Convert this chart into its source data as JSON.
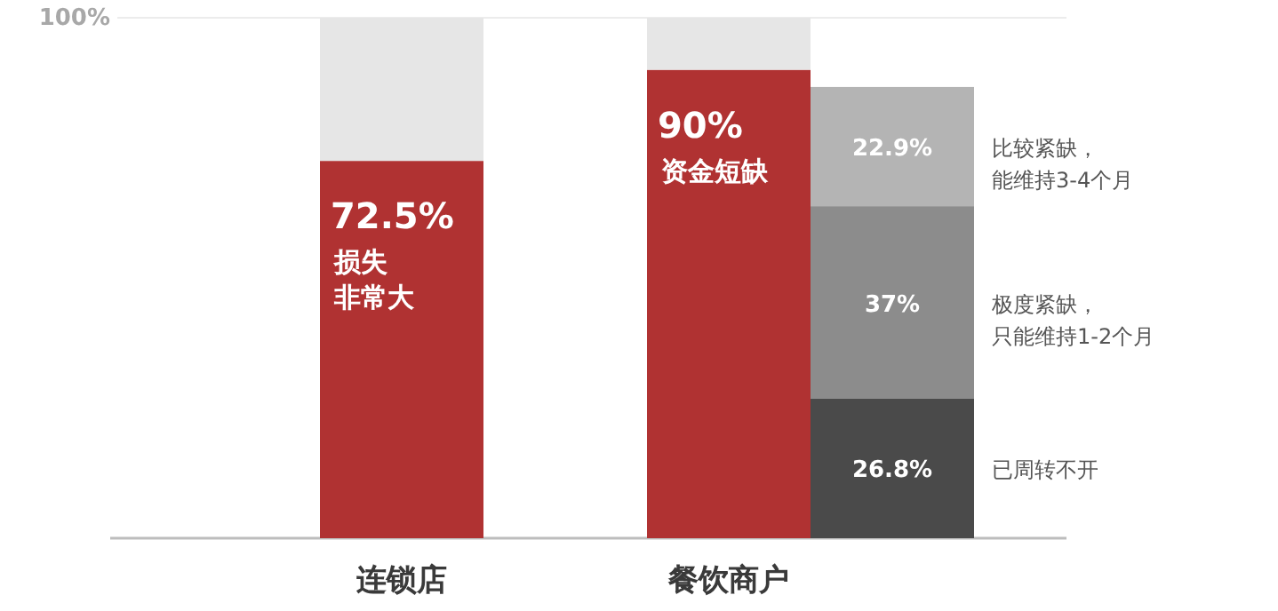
{
  "chart_data": {
    "type": "bar",
    "stacked": true,
    "categories": [
      "连锁店",
      null,
      "餐饮商户",
      null
    ],
    "ylim": [
      0,
      100
    ],
    "ref_lines": [
      {
        "axis": "y",
        "value": 100,
        "label": "100%",
        "color": "#ececec"
      }
    ],
    "series": [
      {
        "color": "#b03232",
        "values": [
          72.5,
          null,
          90,
          null
        ],
        "value_labels": [
          "72.5%",
          null,
          "90%",
          null
        ]
      },
      {
        "color": "#e6e6e6",
        "values": [
          27.5,
          null,
          10,
          null
        ],
        "value_labels": [
          null,
          null,
          null,
          null
        ]
      },
      {
        "name": "已周转不开",
        "color": "#4a4a4a",
        "values": [
          null,
          null,
          null,
          26.8
        ],
        "value_labels": [
          null,
          null,
          null,
          "26.8%"
        ]
      },
      {
        "name": "极度紧缺，只能维持1-2个月",
        "color": "#8c8c8c",
        "values": [
          null,
          null,
          null,
          37
        ],
        "value_labels": [
          null,
          null,
          null,
          "37%"
        ]
      },
      {
        "name": "比较紧缺，能维持3-4个月",
        "color": "#b4b4b4",
        "values": [
          null,
          null,
          null,
          22.9
        ],
        "value_labels": [
          null,
          null,
          null,
          "22.9%"
        ]
      }
    ],
    "annotations": [
      "损失",
      "非常大",
      "资金短缺"
    ]
  }
}
